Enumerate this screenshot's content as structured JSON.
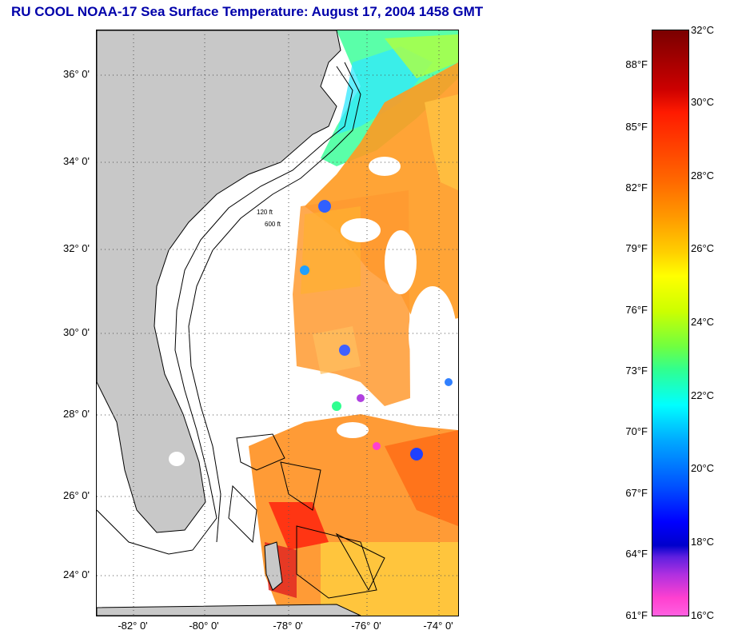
{
  "title": "RU COOL  NOAA-17  Sea Surface Temperature:  August 17, 2004 1458 GMT",
  "map": {
    "latitude_labels": [
      "36° 0'",
      "34° 0'",
      "32° 0'",
      "30° 0'",
      "28° 0'",
      "26° 0'",
      "24° 0'"
    ],
    "longitude_labels": [
      "-82° 0'",
      "-80° 0'",
      "-78° 0'",
      "-76° 0'",
      "-74° 0'"
    ],
    "contour_labels": [
      "120 ft",
      "600 ft"
    ],
    "land_color": "#c8c8c8",
    "grid": "dotted"
  },
  "colorbar": {
    "fahrenheit_labels": [
      "88°F",
      "85°F",
      "82°F",
      "79°F",
      "76°F",
      "73°F",
      "70°F",
      "67°F",
      "64°F",
      "61°F"
    ],
    "celsius_labels": [
      "32°C",
      "30°C",
      "28°C",
      "26°C",
      "24°C",
      "22°C",
      "20°C",
      "18°C",
      "16°C"
    ],
    "range_celsius": [
      16,
      32
    ],
    "range_fahrenheit": [
      61,
      90
    ]
  }
}
